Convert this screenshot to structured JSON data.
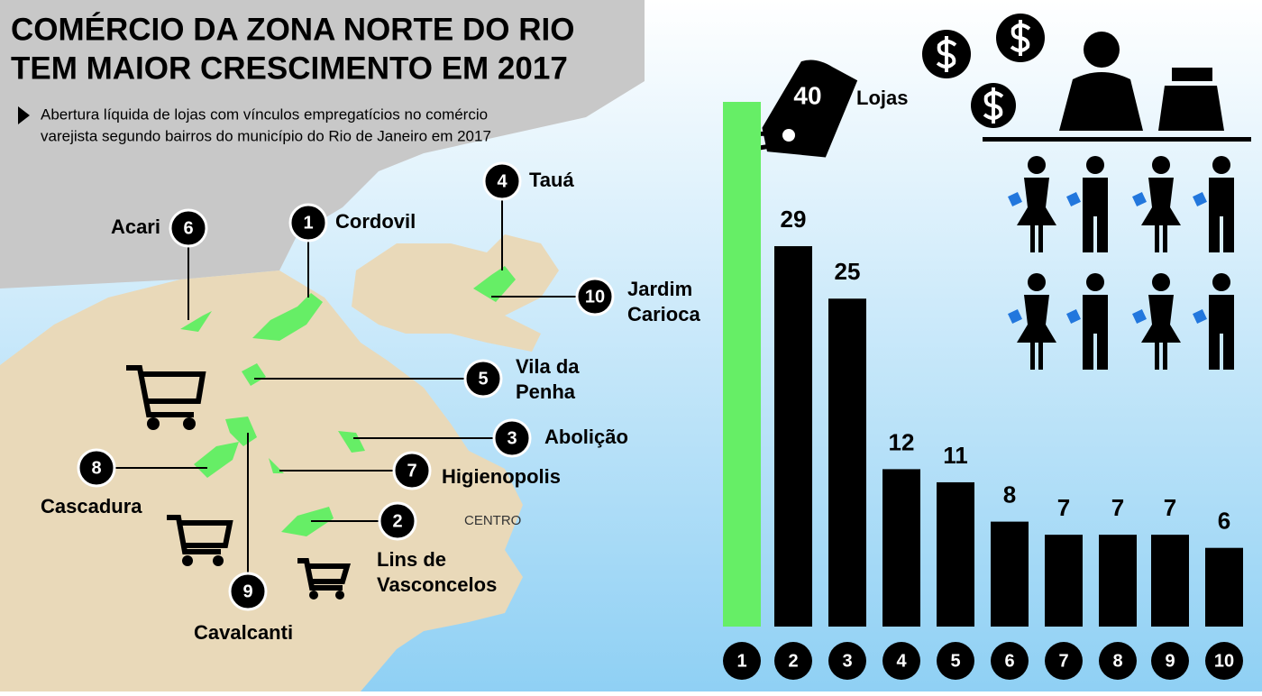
{
  "chart_data": {
    "type": "bar",
    "title": [
      "COMÉRCIO DA ZONA NORTE DO RIO",
      "TEM MAIOR CRESCIMENTO EM 2017"
    ],
    "subtitle": [
      "Abertura líquida de lojas com vínculos empregatícios no comércio",
      "varejista segundo bairros do município do Rio de Janeiro em 2017"
    ],
    "unit_label": "Lojas",
    "categories": [
      "1",
      "2",
      "3",
      "4",
      "5",
      "6",
      "7",
      "8",
      "9",
      "10"
    ],
    "values": [
      40,
      29,
      25,
      12,
      11,
      8,
      7,
      7,
      7,
      6
    ],
    "colors": [
      "#66ee66",
      "#000000",
      "#000000",
      "#000000",
      "#000000",
      "#000000",
      "#000000",
      "#000000",
      "#000000",
      "#000000"
    ],
    "ylim": [
      0,
      40
    ]
  },
  "map": {
    "center_label": "CENTRO",
    "places": [
      {
        "number": "1",
        "name": [
          "Cordovil"
        ]
      },
      {
        "number": "2",
        "name": [
          "Lins de",
          "Vasconcelos"
        ]
      },
      {
        "number": "3",
        "name": [
          "Abolição"
        ]
      },
      {
        "number": "4",
        "name": [
          "Tauá"
        ]
      },
      {
        "number": "5",
        "name": [
          "Vila da",
          "Penha"
        ]
      },
      {
        "number": "6",
        "name": [
          "Acari"
        ]
      },
      {
        "number": "7",
        "name": [
          "Higienopolis"
        ]
      },
      {
        "number": "8",
        "name": [
          "Cascadura"
        ]
      },
      {
        "number": "9",
        "name": [
          "Cavalcanti"
        ]
      },
      {
        "number": "10",
        "name": [
          "Jardim",
          "Carioca"
        ]
      }
    ]
  }
}
